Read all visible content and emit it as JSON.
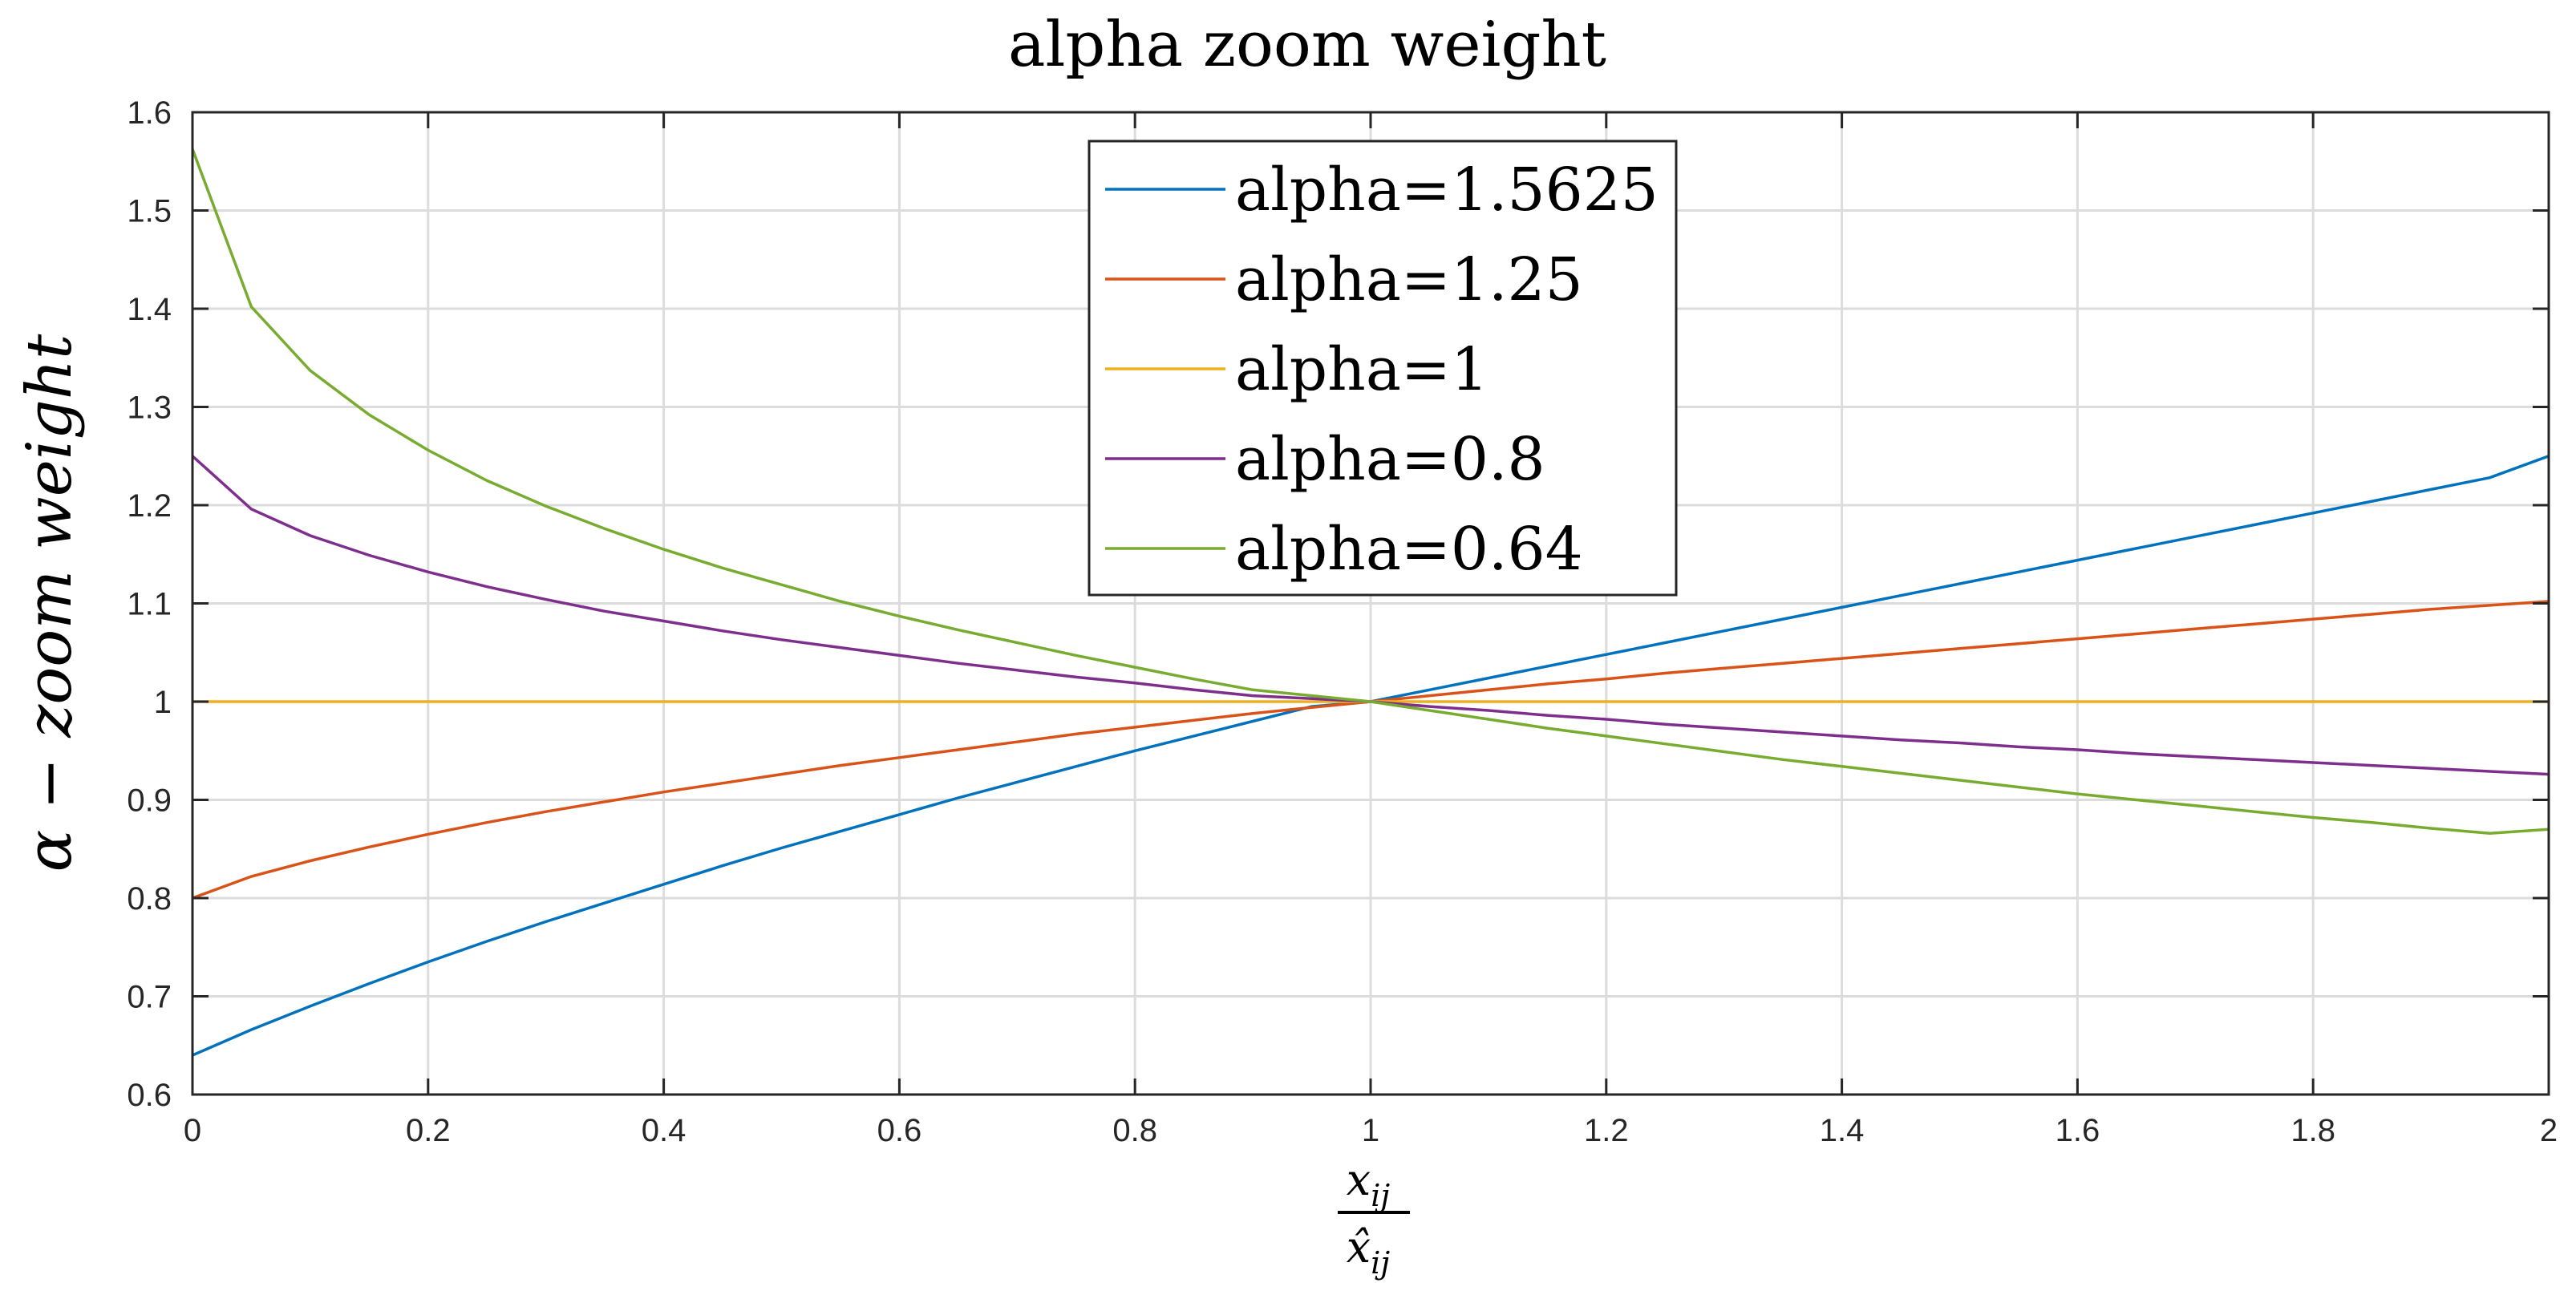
{
  "chart_data": {
    "type": "line",
    "title": "alpha zoom weight",
    "ylabel": "α − zoom weight",
    "xlabel_numerator": "x",
    "xlabel_numerator_sub": "ij",
    "xlabel_denominator": "x̂",
    "xlabel_denominator_sub": "ij",
    "xlim": [
      0,
      2
    ],
    "ylim": [
      0.6,
      1.6
    ],
    "xticks": [
      0,
      0.2,
      0.4,
      0.6,
      0.8,
      1,
      1.2,
      1.4,
      1.6,
      1.8,
      2
    ],
    "xtick_labels": [
      "0",
      "0.2",
      "0.4",
      "0.6",
      "0.8",
      "1",
      "1.2",
      "1.4",
      "1.6",
      "1.8",
      "2"
    ],
    "yticks": [
      0.6,
      0.7,
      0.8,
      0.9,
      1,
      1.1,
      1.2,
      1.3,
      1.4,
      1.5,
      1.6
    ],
    "ytick_labels": [
      "0.6",
      "0.7",
      "0.8",
      "0.9",
      "1",
      "1.1",
      "1.2",
      "1.3",
      "1.4",
      "1.5",
      "1.6"
    ],
    "grid": true,
    "legend_position": "top-center",
    "x": [
      0,
      0.05,
      0.1,
      0.15,
      0.2,
      0.25,
      0.3,
      0.35,
      0.4,
      0.45,
      0.5,
      0.55,
      0.6,
      0.65,
      0.7,
      0.75,
      0.8,
      0.85,
      0.9,
      0.95,
      1,
      1.05,
      1.1,
      1.15,
      1.2,
      1.25,
      1.3,
      1.35,
      1.4,
      1.45,
      1.5,
      1.55,
      1.6,
      1.65,
      1.7,
      1.75,
      1.8,
      1.85,
      1.9,
      1.95,
      2
    ],
    "series": [
      {
        "name": "alpha=1.5625",
        "color": "#0072BD",
        "values": [
          0.64,
          0.666,
          0.69,
          0.713,
          0.735,
          0.756,
          0.776,
          0.795,
          0.814,
          0.833,
          0.851,
          0.868,
          0.885,
          0.902,
          0.918,
          0.934,
          0.95,
          0.965,
          0.98,
          0.995,
          1.0,
          1.012,
          1.024,
          1.036,
          1.048,
          1.06,
          1.072,
          1.084,
          1.096,
          1.108,
          1.12,
          1.132,
          1.144,
          1.156,
          1.168,
          1.18,
          1.192,
          1.204,
          1.216,
          1.228,
          1.25
        ]
      },
      {
        "name": "alpha=1.25",
        "color": "#D95319",
        "values": [
          0.8,
          0.822,
          0.838,
          0.852,
          0.865,
          0.877,
          0.888,
          0.898,
          0.908,
          0.917,
          0.926,
          0.935,
          0.943,
          0.951,
          0.959,
          0.967,
          0.974,
          0.981,
          0.988,
          0.994,
          1.0,
          1.006,
          1.012,
          1.018,
          1.023,
          1.029,
          1.034,
          1.039,
          1.044,
          1.049,
          1.054,
          1.059,
          1.064,
          1.069,
          1.074,
          1.079,
          1.084,
          1.089,
          1.094,
          1.098,
          1.102
        ]
      },
      {
        "name": "alpha=1",
        "color": "#EDB120",
        "values": [
          1,
          1,
          1,
          1,
          1,
          1,
          1,
          1,
          1,
          1,
          1,
          1,
          1,
          1,
          1,
          1,
          1,
          1,
          1,
          1,
          1,
          1,
          1,
          1,
          1,
          1,
          1,
          1,
          1,
          1,
          1,
          1,
          1,
          1,
          1,
          1,
          1,
          1,
          1,
          1,
          1
        ]
      },
      {
        "name": "alpha=0.8",
        "color": "#7E2F8E",
        "values": [
          1.25,
          1.196,
          1.169,
          1.149,
          1.132,
          1.117,
          1.104,
          1.092,
          1.082,
          1.072,
          1.063,
          1.055,
          1.047,
          1.039,
          1.032,
          1.025,
          1.019,
          1.012,
          1.006,
          1.003,
          1.0,
          0.995,
          0.991,
          0.986,
          0.982,
          0.977,
          0.973,
          0.969,
          0.965,
          0.961,
          0.958,
          0.954,
          0.951,
          0.947,
          0.944,
          0.941,
          0.938,
          0.935,
          0.932,
          0.929,
          0.926
        ]
      },
      {
        "name": "alpha=0.64",
        "color": "#77AC30",
        "values": [
          1.5625,
          1.402,
          1.337,
          1.292,
          1.256,
          1.225,
          1.199,
          1.176,
          1.155,
          1.136,
          1.119,
          1.102,
          1.087,
          1.073,
          1.06,
          1.047,
          1.035,
          1.023,
          1.012,
          1.006,
          1.0,
          0.991,
          0.982,
          0.973,
          0.965,
          0.957,
          0.949,
          0.941,
          0.934,
          0.927,
          0.92,
          0.913,
          0.906,
          0.9,
          0.894,
          0.888,
          0.882,
          0.877,
          0.871,
          0.866,
          0.87
        ]
      }
    ]
  }
}
